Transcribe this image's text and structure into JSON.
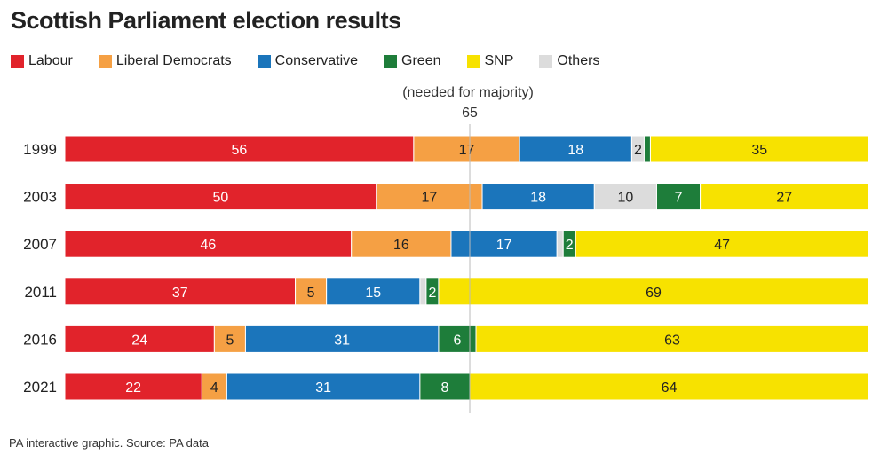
{
  "chart_data": {
    "type": "bar",
    "orientation": "horizontal",
    "stacked": true,
    "title": "Scottish Parliament election results",
    "categories": [
      "1999",
      "2003",
      "2007",
      "2011",
      "2016",
      "2021"
    ],
    "series": [
      {
        "name": "Labour",
        "color": "#e1232b",
        "label_color": "#ffffff",
        "values": [
          56,
          50,
          46,
          37,
          24,
          22
        ]
      },
      {
        "name": "Liberal Democrats",
        "color": "#f5a044",
        "label_color": "#222222",
        "values": [
          17,
          17,
          16,
          5,
          5,
          4
        ]
      },
      {
        "name": "Conservative",
        "color": "#1b75bb",
        "label_color": "#ffffff",
        "values": [
          18,
          18,
          17,
          15,
          31,
          31
        ]
      },
      {
        "name": "Others",
        "color": "#dcdcdc",
        "label_color": "#222222",
        "values": [
          2,
          10,
          1,
          1,
          0,
          0
        ]
      },
      {
        "name": "Green",
        "color": "#1e7d3a",
        "label_color": "#ffffff",
        "values": [
          1,
          7,
          2,
          2,
          6,
          8
        ]
      },
      {
        "name": "SNP",
        "color": "#f7e200",
        "label_color": "#222222",
        "values": [
          35,
          27,
          47,
          69,
          63,
          64
        ]
      }
    ],
    "legend_order": [
      "Labour",
      "Liberal Democrats",
      "Conservative",
      "Green",
      "SNP",
      "Others"
    ],
    "legend_position": "top-left",
    "xlim": [
      0,
      129
    ],
    "grid": false,
    "reference_line": {
      "value": 65,
      "label": "65",
      "note": "(needed for majority)"
    }
  },
  "footer": {
    "source": "PA interactive graphic. Source: PA data"
  }
}
